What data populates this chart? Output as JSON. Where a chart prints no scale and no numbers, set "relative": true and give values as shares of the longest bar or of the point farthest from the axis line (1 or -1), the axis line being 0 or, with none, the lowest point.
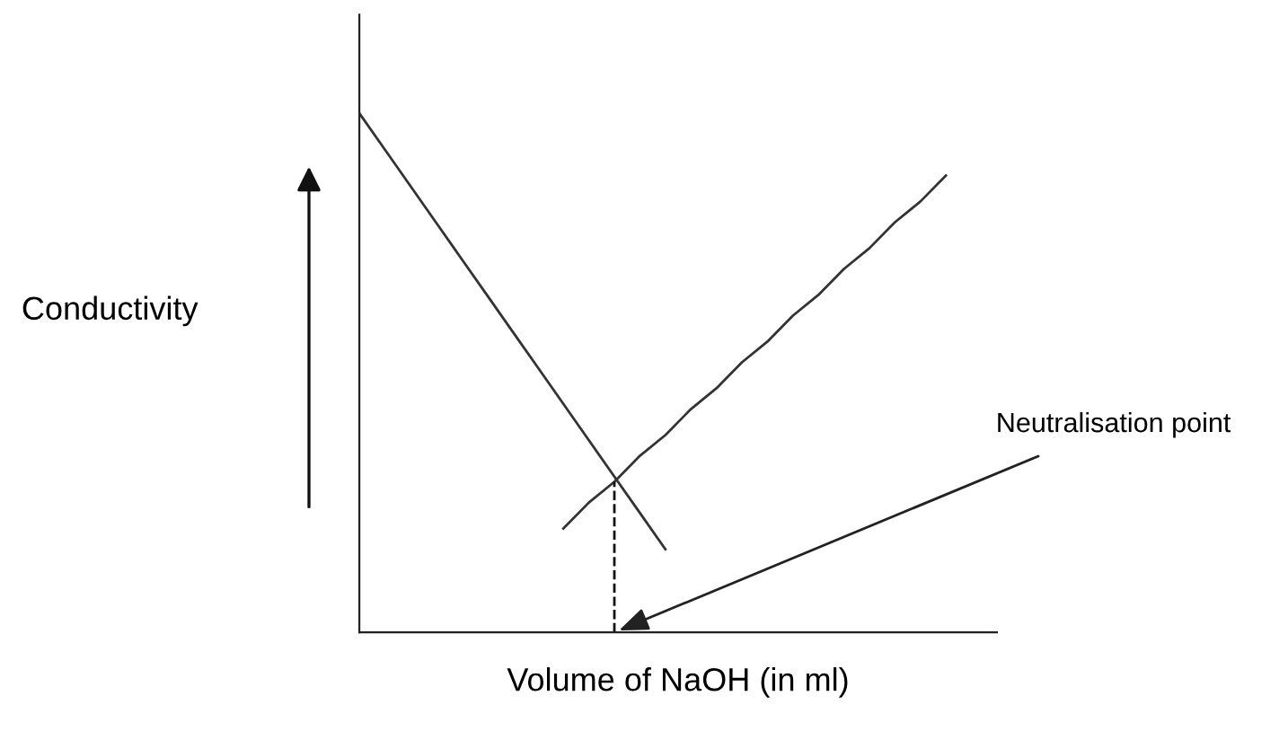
{
  "chart_data": {
    "type": "line",
    "relative": true,
    "xlabel": "Volume of NaOH (in ml)",
    "ylabel": "Conductivity",
    "categories": [
      null,
      null,
      null,
      null,
      null,
      null,
      null,
      null,
      null,
      null,
      null,
      null,
      null,
      null,
      null,
      null,
      null,
      null,
      null,
      null,
      null,
      null,
      null,
      null,
      null,
      null
    ],
    "series": [
      {
        "color": "#333333",
        "values": [
          1,
          0.93,
          0.86,
          0.79,
          0.72,
          0.65,
          0.58,
          0.51,
          0.44,
          0.37,
          0.3,
          0.23,
          0.16,
          null,
          null,
          null,
          null,
          null,
          null,
          null,
          null,
          null,
          null,
          null,
          null,
          null
        ]
      },
      {
        "color": "#333333",
        "values": [
          null,
          null,
          null,
          null,
          null,
          null,
          null,
          null,
          0.2,
          0.25,
          0.29,
          0.34,
          0.38,
          0.43,
          0.47,
          0.52,
          0.56,
          0.61,
          0.65,
          0.7,
          0.74,
          0.79,
          0.83,
          0.88,
          null,
          null
        ]
      }
    ],
    "annotations": [
      "Neutralisation point"
    ]
  }
}
